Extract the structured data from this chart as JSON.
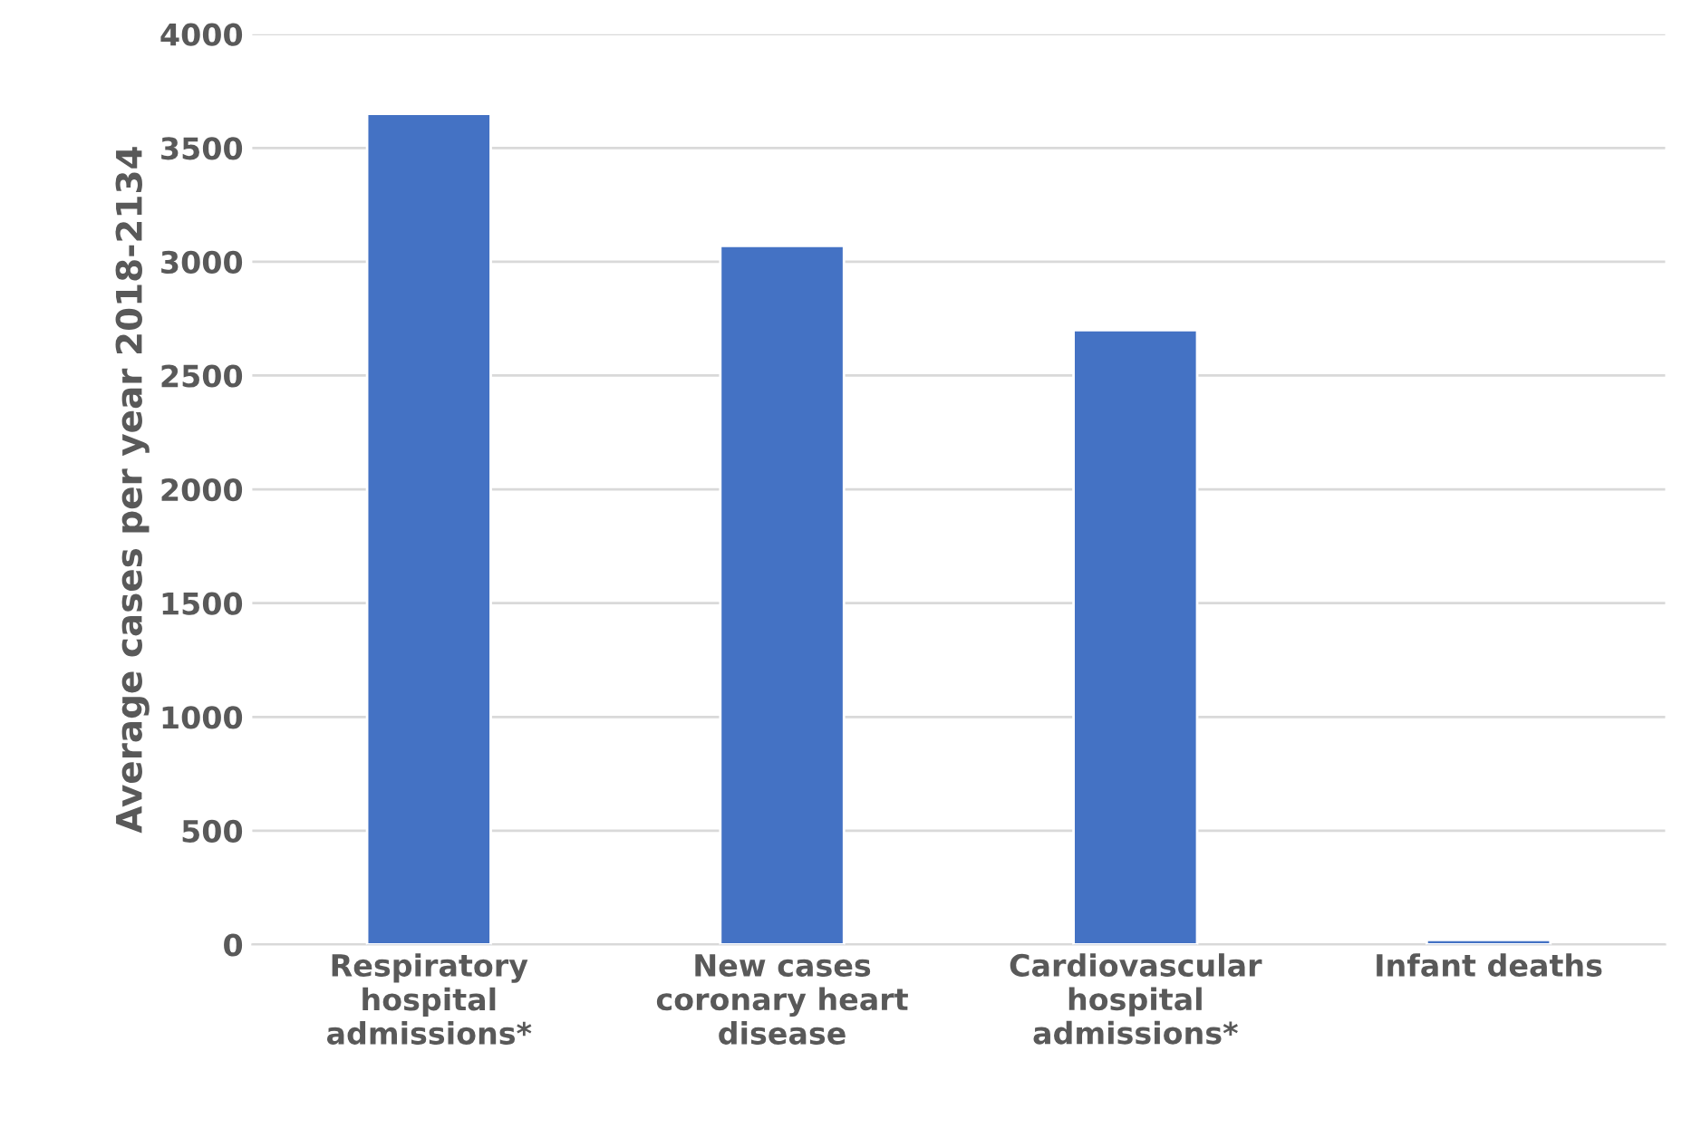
{
  "chart_data": {
    "type": "bar",
    "ylabel": "Average cases per year 2018-2134",
    "categories": [
      "Respiratory\nhospital\nadmissions*",
      "New cases\ncoronary heart\ndisease",
      "Cardiovascular\nhospital\nadmissions*",
      "Infant deaths"
    ],
    "values": [
      3650,
      3070,
      2700,
      20
    ],
    "color": "#4472c4",
    "ylim": [
      0,
      4000
    ],
    "yticks": [
      0,
      500,
      1000,
      1500,
      2000,
      2500,
      3000,
      3500,
      4000
    ],
    "grid": "y"
  }
}
